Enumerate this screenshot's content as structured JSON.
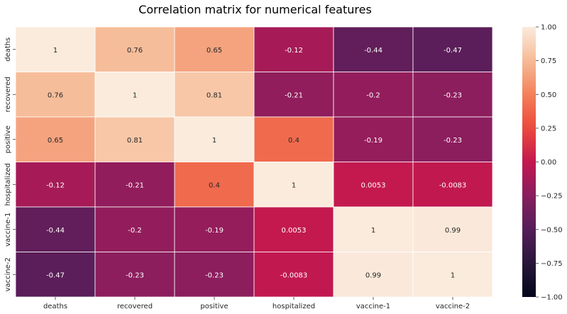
{
  "chart_data": {
    "type": "heatmap",
    "title": "Correlation matrix for numerical features",
    "x_labels": [
      "deaths",
      "recovered",
      "positive",
      "hospitalized",
      "vaccine-1",
      "vaccine-2"
    ],
    "y_labels": [
      "deaths",
      "recovered",
      "positive",
      "hospitalized",
      "vaccine-1",
      "vaccine-2"
    ],
    "values": [
      [
        1,
        0.76,
        0.65,
        -0.12,
        -0.44,
        -0.47
      ],
      [
        0.76,
        1,
        0.81,
        -0.21,
        -0.2,
        -0.23
      ],
      [
        0.65,
        0.81,
        1,
        0.4,
        -0.19,
        -0.23
      ],
      [
        -0.12,
        -0.21,
        0.4,
        1,
        0.0053,
        -0.0083
      ],
      [
        -0.44,
        -0.2,
        -0.19,
        0.0053,
        1,
        0.99
      ],
      [
        -0.47,
        -0.23,
        -0.23,
        -0.0083,
        0.99,
        1
      ]
    ],
    "annotations": [
      [
        "1",
        "0.76",
        "0.65",
        "-0.12",
        "-0.44",
        "-0.47"
      ],
      [
        "0.76",
        "1",
        "0.81",
        "-0.21",
        "-0.2",
        "-0.23"
      ],
      [
        "0.65",
        "0.81",
        "1",
        "0.4",
        "-0.19",
        "-0.23"
      ],
      [
        "-0.12",
        "-0.21",
        "0.4",
        "1",
        "0.0053",
        "-0.0083"
      ],
      [
        "-0.44",
        "-0.2",
        "-0.19",
        "0.0053",
        "1",
        "0.99"
      ],
      [
        "-0.47",
        "-0.23",
        "-0.23",
        "-0.0083",
        "0.99",
        "1"
      ]
    ],
    "colorbar": {
      "range": [
        -1,
        1
      ],
      "ticks": [
        -1.0,
        -0.75,
        -0.5,
        -0.25,
        0.0,
        0.25,
        0.5,
        0.75,
        1.0
      ],
      "tick_labels": [
        "−1.00",
        "−0.75",
        "−0.50",
        "−0.25",
        "0.00",
        "0.25",
        "0.50",
        "0.75",
        "1.00"
      ]
    },
    "colormap": "rocket"
  }
}
